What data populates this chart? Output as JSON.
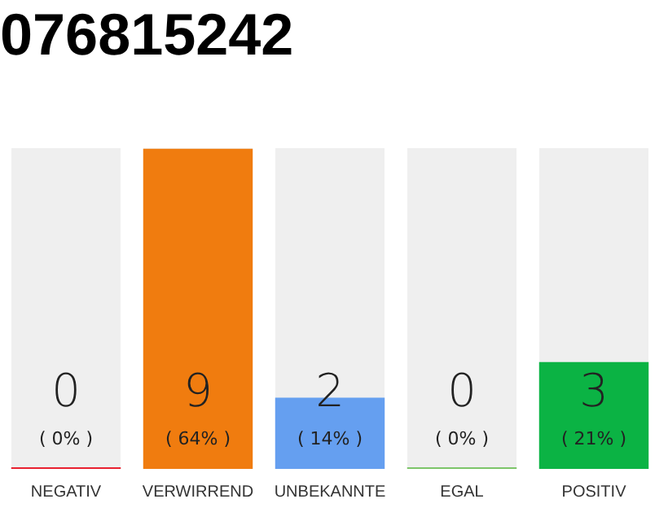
{
  "chart_data": {
    "type": "bar",
    "title": "076815242",
    "categories": [
      "NEGATIV",
      "VERWIRREND",
      "UNBEKANNTE",
      "EGAL",
      "POSITIV"
    ],
    "values": [
      0,
      9,
      2,
      0,
      3
    ],
    "colors": [
      "#e8212f",
      "#f07c0f",
      "#659ff0",
      "#7dc56a",
      "#0bb344"
    ],
    "ylim": [
      0,
      9
    ],
    "grid": false,
    "legend": false,
    "value_labels": [
      "0\n( 0% )",
      "9\n( 64% )",
      "2\n( 14% )",
      "0\n( 0% )",
      "3\n( 21% )"
    ]
  }
}
